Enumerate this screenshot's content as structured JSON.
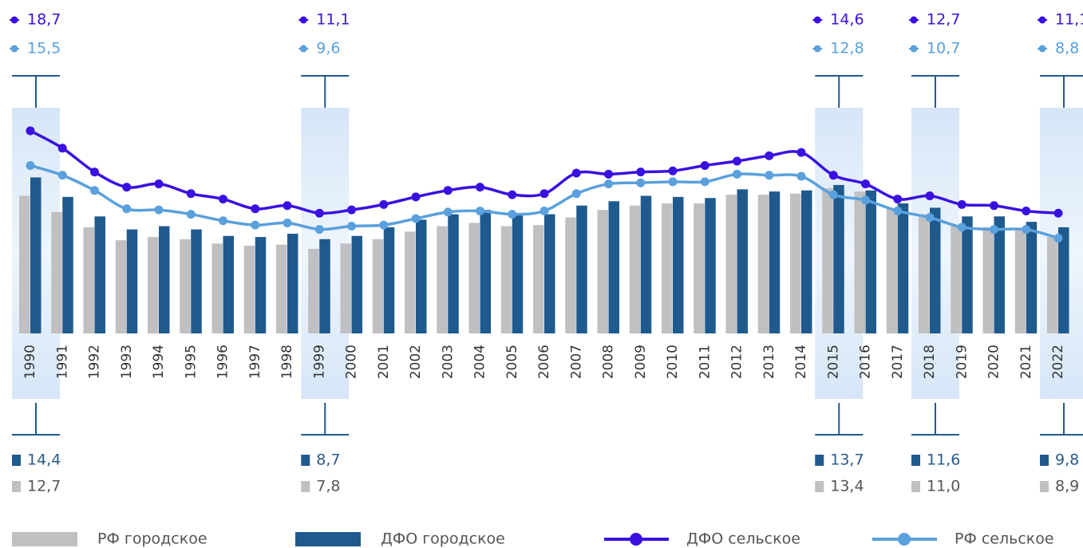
{
  "chart_data": {
    "type": "bar-line",
    "categories": [
      "1990",
      "1991",
      "1992",
      "1993",
      "1994",
      "1995",
      "1996",
      "1997",
      "1998",
      "1999",
      "2000",
      "2001",
      "2002",
      "2003",
      "2004",
      "2005",
      "2006",
      "2007",
      "2008",
      "2009",
      "2010",
      "2011",
      "2012",
      "2013",
      "2014",
      "2015",
      "2016",
      "2017",
      "2018",
      "2019",
      "2020",
      "2021",
      "2022"
    ],
    "ylim": [
      0,
      24
    ],
    "series": [
      {
        "name": "РФ городское",
        "type": "bar",
        "color": "#c0bfc1",
        "values": [
          12.7,
          11.2,
          9.8,
          8.6,
          8.9,
          8.7,
          8.3,
          8.1,
          8.2,
          7.8,
          8.3,
          8.7,
          9.4,
          9.9,
          10.2,
          9.9,
          10.0,
          10.7,
          11.4,
          11.8,
          12.0,
          12.0,
          12.8,
          12.8,
          12.9,
          13.4,
          13.1,
          11.6,
          11.0,
          9.9,
          9.8,
          9.6,
          8.9
        ],
        "value_labels": [
          "12,7",
          null,
          null,
          null,
          null,
          null,
          null,
          null,
          null,
          "7,8",
          null,
          null,
          null,
          null,
          null,
          null,
          null,
          null,
          null,
          null,
          null,
          null,
          null,
          null,
          null,
          "13,4",
          null,
          null,
          "11,0",
          null,
          null,
          null,
          "8,9"
        ]
      },
      {
        "name": "ДФО городское",
        "type": "bar",
        "color": "#1f5a8e",
        "values": [
          14.4,
          12.6,
          10.8,
          9.6,
          9.9,
          9.6,
          9.0,
          8.9,
          9.2,
          8.7,
          9.0,
          9.8,
          10.5,
          11.0,
          11.4,
          10.9,
          11.0,
          11.8,
          12.2,
          12.7,
          12.6,
          12.5,
          13.3,
          13.1,
          13.2,
          13.7,
          13.2,
          12.0,
          11.6,
          10.8,
          10.8,
          10.3,
          9.8
        ],
        "value_labels": [
          "14,4",
          null,
          null,
          null,
          null,
          null,
          null,
          null,
          null,
          "8,7",
          null,
          null,
          null,
          null,
          null,
          null,
          null,
          null,
          null,
          null,
          null,
          null,
          null,
          null,
          null,
          "13,7",
          null,
          null,
          "11,6",
          null,
          null,
          null,
          "9,8"
        ]
      },
      {
        "name": "ДФО сельское",
        "type": "line",
        "color": "#3a10e0",
        "values": [
          18.7,
          17.1,
          14.9,
          13.5,
          13.8,
          12.9,
          12.4,
          11.5,
          11.8,
          11.1,
          11.4,
          11.9,
          12.6,
          13.2,
          13.5,
          12.8,
          12.9,
          14.8,
          14.7,
          14.9,
          15.0,
          15.5,
          15.9,
          16.4,
          16.7,
          14.6,
          13.8,
          12.4,
          12.7,
          11.9,
          11.8,
          11.3,
          11.1
        ],
        "value_labels": [
          "18,7",
          null,
          null,
          null,
          null,
          null,
          null,
          null,
          null,
          "11,1",
          null,
          null,
          null,
          null,
          null,
          null,
          null,
          null,
          null,
          null,
          null,
          null,
          null,
          null,
          null,
          "14,6",
          null,
          null,
          "12,7",
          null,
          null,
          null,
          "11,1"
        ]
      },
      {
        "name": "РФ сельское",
        "type": "line",
        "color": "#5aa0dc",
        "values": [
          15.5,
          14.6,
          13.2,
          11.5,
          11.4,
          11.0,
          10.4,
          10.0,
          10.2,
          9.6,
          9.9,
          10.0,
          10.6,
          11.2,
          11.3,
          11.0,
          11.3,
          12.9,
          13.8,
          13.9,
          14.0,
          14.0,
          14.7,
          14.6,
          14.5,
          12.8,
          12.3,
          11.3,
          10.7,
          9.8,
          9.6,
          9.6,
          8.8
        ],
        "value_labels": [
          "15,5",
          null,
          null,
          null,
          null,
          null,
          null,
          null,
          null,
          "9,6",
          null,
          null,
          null,
          null,
          null,
          null,
          null,
          null,
          null,
          null,
          null,
          null,
          null,
          null,
          null,
          "12,8",
          null,
          null,
          "10,7",
          null,
          null,
          null,
          "8,8"
        ]
      }
    ]
  }
}
